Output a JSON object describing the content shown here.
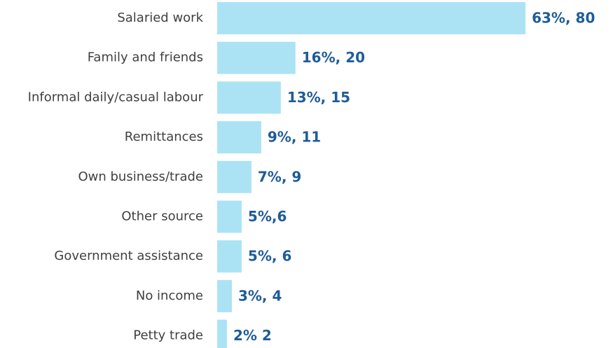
{
  "chart_data": {
    "type": "bar",
    "orientation": "horizontal",
    "categories": [
      "Salaried work",
      "Family and friends",
      "Informal daily/casual labour",
      "Remittances",
      "Own business/trade",
      "Other source",
      "Government assistance",
      "No income",
      "Petty trade"
    ],
    "values": [
      63,
      16,
      13,
      9,
      7,
      5,
      5,
      3,
      2
    ],
    "value_labels": [
      "63%, 80",
      "16%, 20",
      "13%, 15",
      "9%, 11",
      "7%, 9",
      "5%,6",
      "5%, 6",
      "3%, 4",
      "2% 2"
    ],
    "color": "#abe3f4",
    "xlim": [
      0,
      70
    ]
  }
}
